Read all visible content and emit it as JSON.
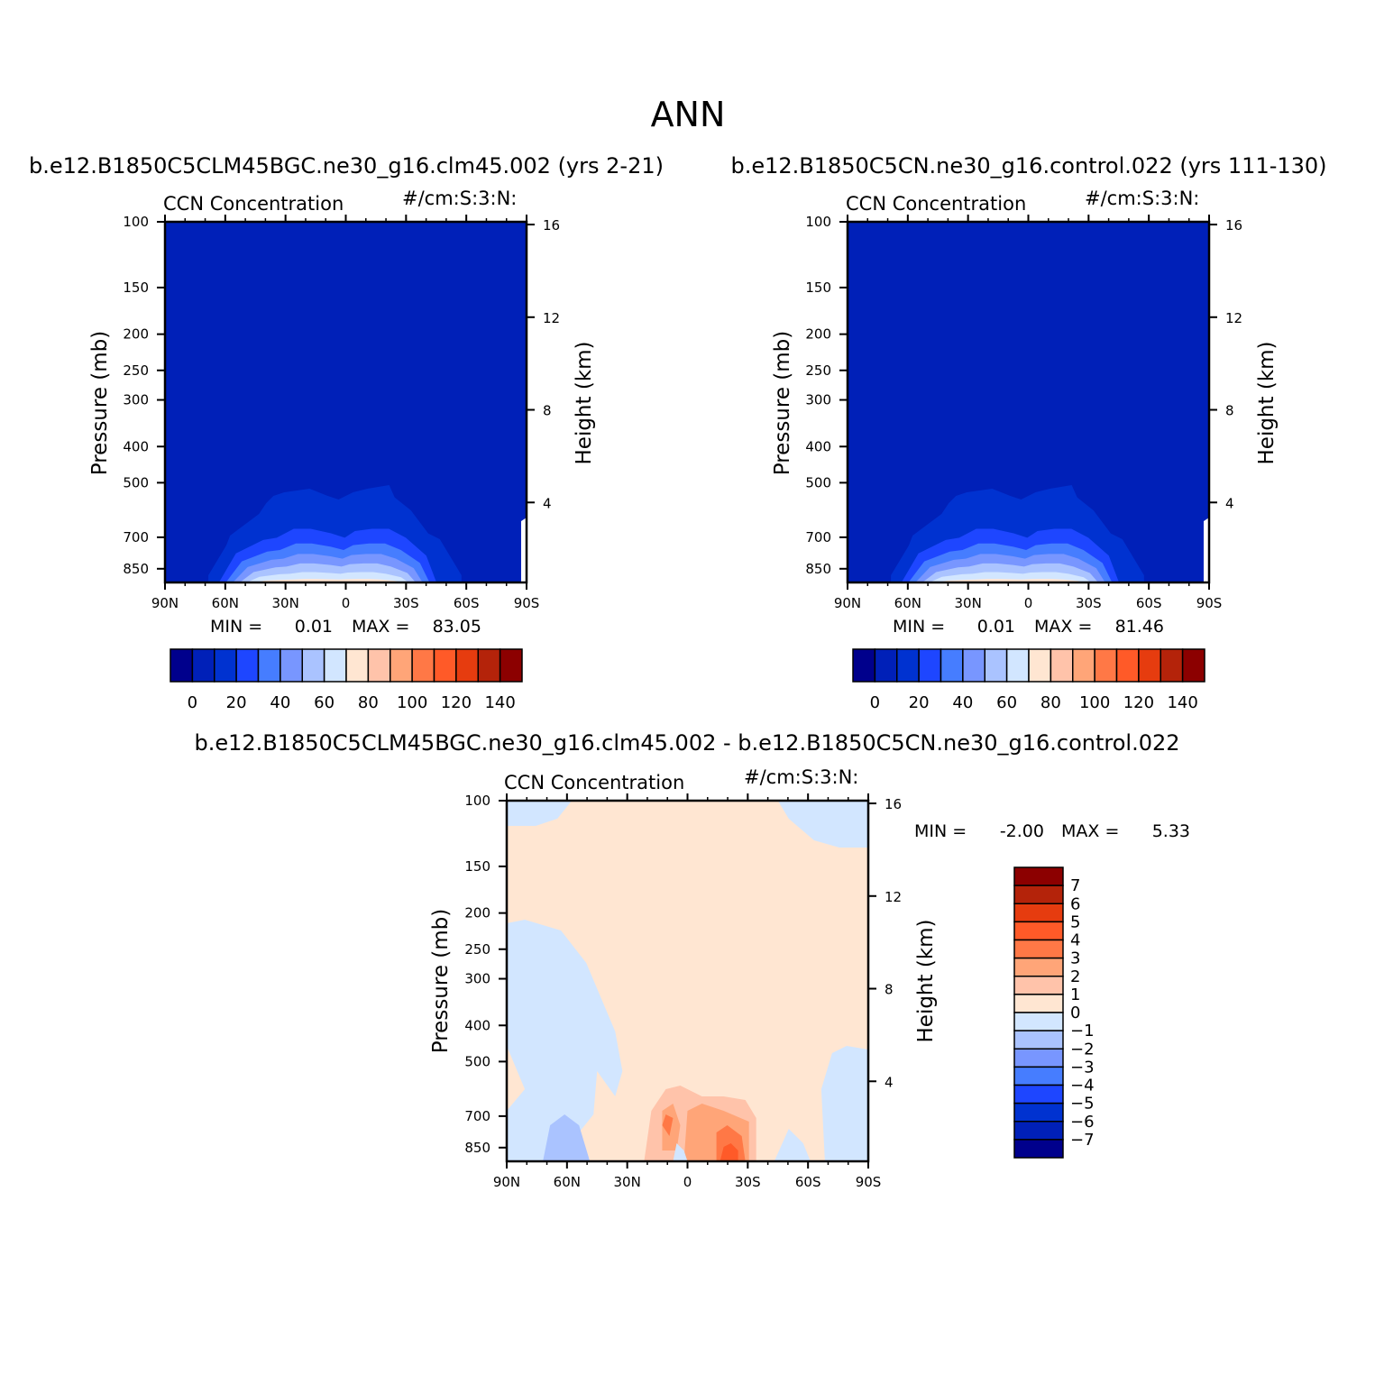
{
  "figure": {
    "title": "ANN"
  },
  "colors": {
    "abs_scale": [
      "#00008c",
      "#0020b8",
      "#0032d0",
      "#1e46ff",
      "#467dff",
      "#7896ff",
      "#aac3ff",
      "#d2e6ff",
      "#ffe6d2",
      "#ffc3aa",
      "#ffa578",
      "#ff7846",
      "#ff5a28",
      "#e63c0f",
      "#b4230a",
      "#8c0000"
    ],
    "diff_scale": [
      "#8c0000",
      "#b4230a",
      "#e63c0f",
      "#ff5a28",
      "#ff7846",
      "#ffa578",
      "#ffc3aa",
      "#ffe6d2",
      "#d2e6ff",
      "#aac3ff",
      "#7896ff",
      "#467dff",
      "#1e46ff",
      "#0032d0",
      "#0020b8",
      "#00008c"
    ]
  },
  "chart_data": [
    {
      "type": "heatmap",
      "title": "b.e12.B1850C5CLM45BGC.ne30_g16.clm45.002 (yrs 2-21)",
      "left_string": "CCN Concentration",
      "right_string": "#/cm:S:3:N:",
      "ylabel": "Pressure (mb)",
      "y2label": "Height (km)",
      "x_ticks": [
        "90N",
        "60N",
        "30N",
        "0",
        "30S",
        "60S",
        "90S"
      ],
      "y_ticks": [
        "100",
        "150",
        "200",
        "250",
        "300",
        "400",
        "500",
        "700",
        "850"
      ],
      "y_ticks_values": [
        100,
        150,
        200,
        250,
        300,
        400,
        500,
        700,
        850
      ],
      "y2_ticks": [
        "16",
        "12",
        "8",
        "4"
      ],
      "y2_ticks_values": [
        16,
        12,
        8,
        4
      ],
      "xlim": [
        90,
        -90
      ],
      "ylim_mb": [
        100,
        925
      ],
      "y_scale": "log",
      "stats": {
        "min_label": "MIN =",
        "min": "0.01",
        "max_label": "MAX =",
        "max": "83.05"
      },
      "colorbar": {
        "orientation": "horizontal",
        "labels": [
          "0",
          "20",
          "40",
          "60",
          "80",
          "100",
          "120",
          "140"
        ],
        "levels": [
          0,
          10,
          20,
          30,
          40,
          50,
          60,
          70,
          80,
          90,
          100,
          110,
          120,
          130,
          140
        ]
      }
    },
    {
      "type": "heatmap",
      "title": "b.e12.B1850C5CN.ne30_g16.control.022 (yrs 111-130)",
      "left_string": "CCN Concentration",
      "right_string": "#/cm:S:3:N:",
      "ylabel": "Pressure (mb)",
      "y2label": "Height (km)",
      "x_ticks": [
        "90N",
        "60N",
        "30N",
        "0",
        "30S",
        "60S",
        "90S"
      ],
      "y_ticks": [
        "100",
        "150",
        "200",
        "250",
        "300",
        "400",
        "500",
        "700",
        "850"
      ],
      "y_ticks_values": [
        100,
        150,
        200,
        250,
        300,
        400,
        500,
        700,
        850
      ],
      "y2_ticks": [
        "16",
        "12",
        "8",
        "4"
      ],
      "y2_ticks_values": [
        16,
        12,
        8,
        4
      ],
      "xlim": [
        90,
        -90
      ],
      "ylim_mb": [
        100,
        925
      ],
      "y_scale": "log",
      "stats": {
        "min_label": "MIN =",
        "min": "0.01",
        "max_label": "MAX =",
        "max": "81.46"
      },
      "colorbar": {
        "orientation": "horizontal",
        "labels": [
          "0",
          "20",
          "40",
          "60",
          "80",
          "100",
          "120",
          "140"
        ],
        "levels": [
          0,
          10,
          20,
          30,
          40,
          50,
          60,
          70,
          80,
          90,
          100,
          110,
          120,
          130,
          140
        ]
      }
    },
    {
      "type": "heatmap",
      "title": "b.e12.B1850C5CLM45BGC.ne30_g16.clm45.002 - b.e12.B1850C5CN.ne30_g16.control.022",
      "left_string": "CCN Concentration",
      "right_string": "#/cm:S:3:N:",
      "ylabel": "Pressure (mb)",
      "y2label": "Height (km)",
      "x_ticks": [
        "90N",
        "60N",
        "30N",
        "0",
        "30S",
        "60S",
        "90S"
      ],
      "y_ticks": [
        "100",
        "150",
        "200",
        "250",
        "300",
        "400",
        "500",
        "700",
        "850"
      ],
      "y_ticks_values": [
        100,
        150,
        200,
        250,
        300,
        400,
        500,
        700,
        850
      ],
      "y2_ticks": [
        "16",
        "12",
        "8",
        "4"
      ],
      "y2_ticks_values": [
        16,
        12,
        8,
        4
      ],
      "xlim": [
        90,
        -90
      ],
      "ylim_mb": [
        100,
        925
      ],
      "y_scale": "log",
      "stats": {
        "min_label": "MIN =",
        "min": "-2.00",
        "max_label": "MAX =",
        "max": "5.33"
      },
      "colorbar": {
        "orientation": "vertical",
        "labels": [
          "7",
          "6",
          "5",
          "4",
          "3",
          "2",
          "1",
          "0",
          "-1",
          "-2",
          "-3",
          "-4",
          "-5",
          "-6",
          "-7"
        ],
        "levels": [
          7,
          6,
          5,
          4,
          3,
          2,
          1,
          0,
          -1,
          -2,
          -3,
          -4,
          -5,
          -6,
          -7
        ]
      }
    }
  ]
}
